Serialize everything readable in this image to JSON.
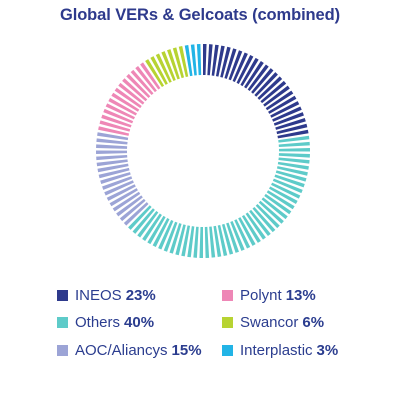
{
  "chart_data": {
    "type": "pie",
    "variant": "donut",
    "title": "Global VERs & Gelcoats (combined)",
    "unit": "%",
    "legend_position": "bottom",
    "slices": [
      {
        "label": "INEOS",
        "value": 23,
        "display": "23%",
        "color": "#2e3a8c"
      },
      {
        "label": "Others",
        "value": 40,
        "display": "40%",
        "color": "#5ecbc9"
      },
      {
        "label": "AOC/Aliancys",
        "value": 15,
        "display": "15%",
        "color": "#9ca4d6"
      },
      {
        "label": "Polynt",
        "value": 13,
        "display": "13%",
        "color": "#ee87b6"
      },
      {
        "label": "Swancor",
        "value": 6,
        "display": "6%",
        "color": "#b7d332"
      },
      {
        "label": "Interplastic",
        "value": 3,
        "display": "3%",
        "color": "#22b4e6"
      }
    ],
    "legend_order": [
      "INEOS",
      "Polynt",
      "Others",
      "Swancor",
      "AOC/Aliancys",
      "Interplastic"
    ]
  }
}
